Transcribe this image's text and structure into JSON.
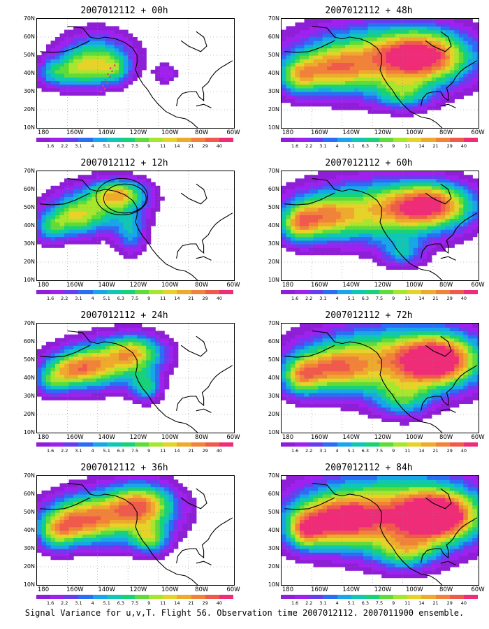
{
  "panels": [
    {
      "title": "2007012112 + 00h"
    },
    {
      "title": "2007012112 + 48h"
    },
    {
      "title": "2007012112 + 12h"
    },
    {
      "title": "2007012112 + 60h"
    },
    {
      "title": "2007012112 + 24h"
    },
    {
      "title": "2007012112 + 72h"
    },
    {
      "title": "2007012112 + 36h"
    },
    {
      "title": "2007012112 + 84h"
    }
  ],
  "y_ticks": [
    "70N",
    "60N",
    "50N",
    "40N",
    "30N",
    "20N",
    "10N"
  ],
  "x_ticks": [
    "180",
    "160W",
    "140W",
    "120W",
    "100W",
    "80W",
    "60W"
  ],
  "colorbar": {
    "labels": [
      "1.6",
      "2.2",
      "3.1",
      "4",
      "5.1",
      "6.3",
      "7.5",
      "9",
      "11",
      "14",
      "21",
      "29",
      "40"
    ],
    "colors": [
      "#8f1fd6",
      "#a020f0",
      "#6a3cf0",
      "#2b6df5",
      "#19a6e8",
      "#10c6b4",
      "#18d278",
      "#5fdc3a",
      "#a7e62f",
      "#e7d22a",
      "#eeaa2c",
      "#f1823a",
      "#f05a4c",
      "#ef2c77"
    ]
  },
  "caption": "Signal Variance for u,v,T. Flight 56. Observation time 2007012112. 2007011900 ensemble."
}
